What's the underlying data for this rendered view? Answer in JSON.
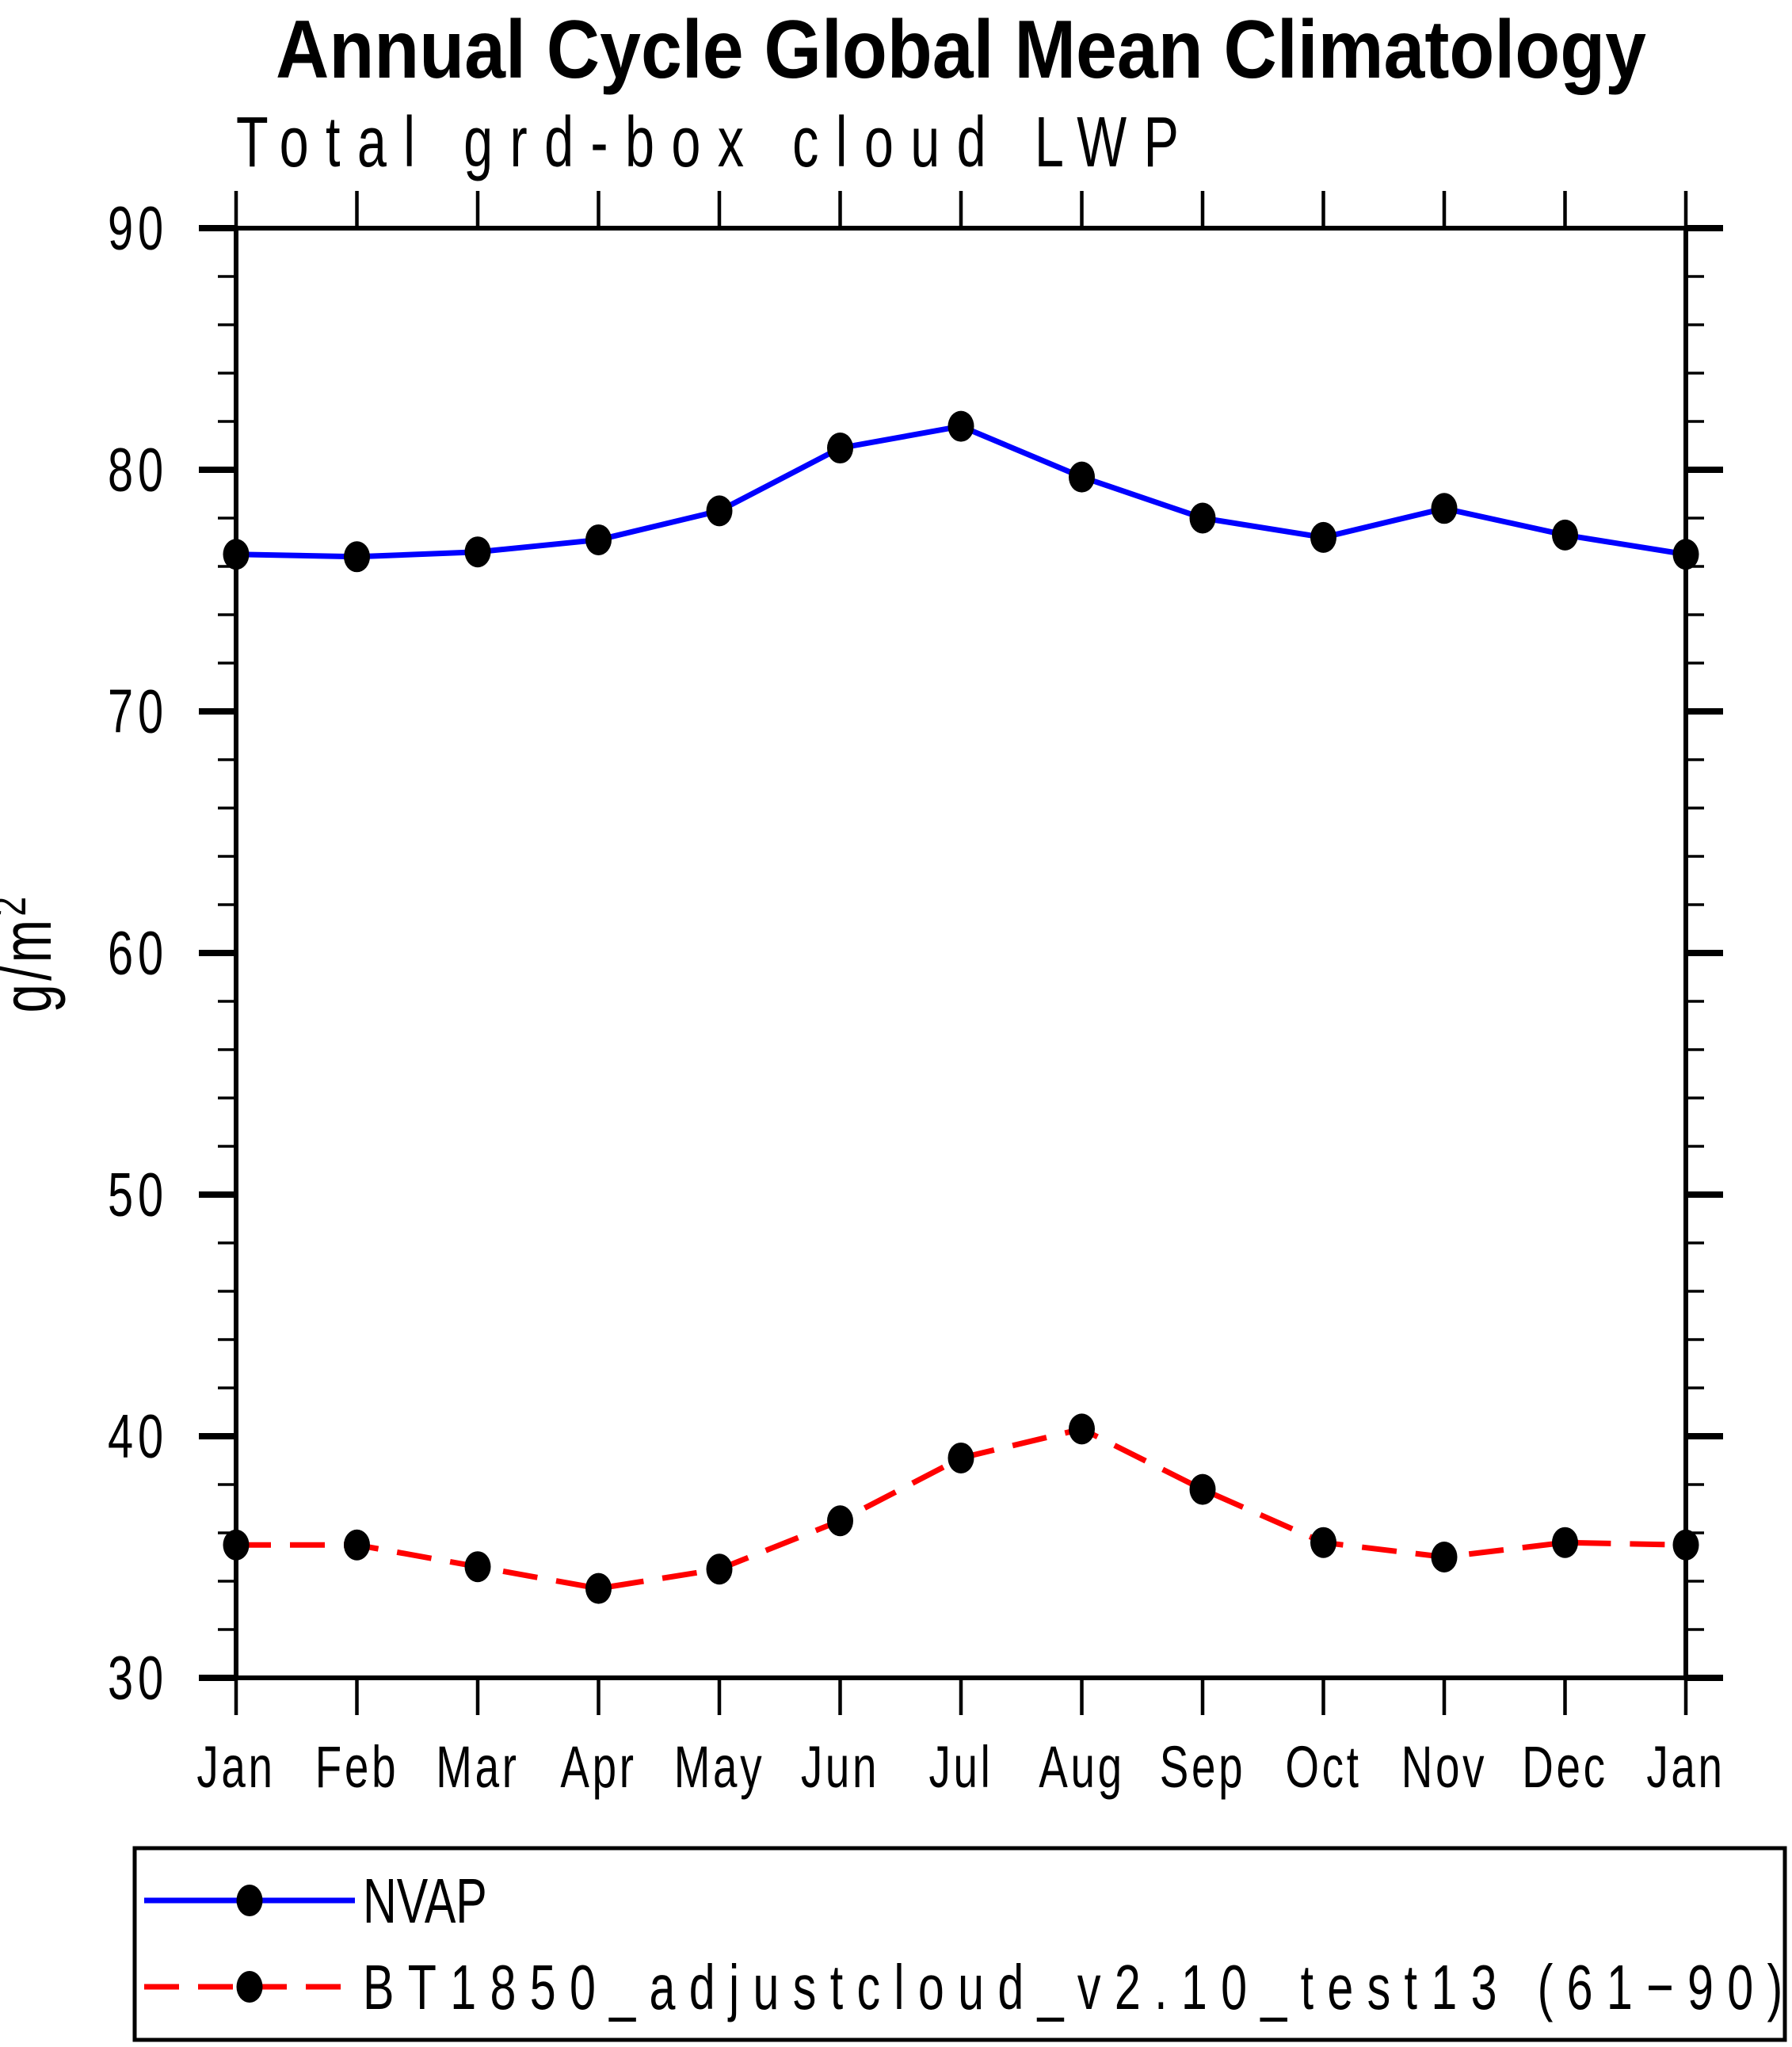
{
  "chart_data": {
    "type": "line",
    "title": "Annual Cycle Global Mean Climatology",
    "subtitle": "Total grd-box cloud LWP",
    "ylabel_base": "g/m",
    "ylabel_sup": "2",
    "x_categories": [
      "Jan",
      "Feb",
      "Mar",
      "Apr",
      "May",
      "Jun",
      "Jul",
      "Aug",
      "Sep",
      "Oct",
      "Nov",
      "Dec",
      "Jan"
    ],
    "ylim": [
      30,
      90
    ],
    "y_major_ticks": [
      30,
      40,
      50,
      60,
      70,
      80,
      90
    ],
    "y_minor_step": 2,
    "grid": "off",
    "legend_position": "bottom",
    "colors": {
      "background": "#ffffff",
      "axis": "#000000",
      "marker": "#000000",
      "nvap_line": "#0000ff",
      "bt1850_line": "#ff0000"
    },
    "series": [
      {
        "name": "NVAP",
        "color": "#0000ff",
        "style": "solid",
        "marker": "filled-circle",
        "marker_color": "#000000",
        "values": [
          76.5,
          76.4,
          76.6,
          77.1,
          78.3,
          80.9,
          81.8,
          79.7,
          78.0,
          77.2,
          78.4,
          77.3,
          76.5
        ]
      },
      {
        "name": "BT1850_adjustcloud_v2.10_test13 (61−90)",
        "color": "#ff0000",
        "style": "dashed",
        "marker": "filled-circle",
        "marker_color": "#000000",
        "values": [
          35.5,
          35.5,
          34.6,
          33.7,
          34.5,
          36.5,
          39.1,
          40.3,
          37.8,
          35.6,
          35.0,
          35.6,
          35.5
        ]
      }
    ]
  }
}
